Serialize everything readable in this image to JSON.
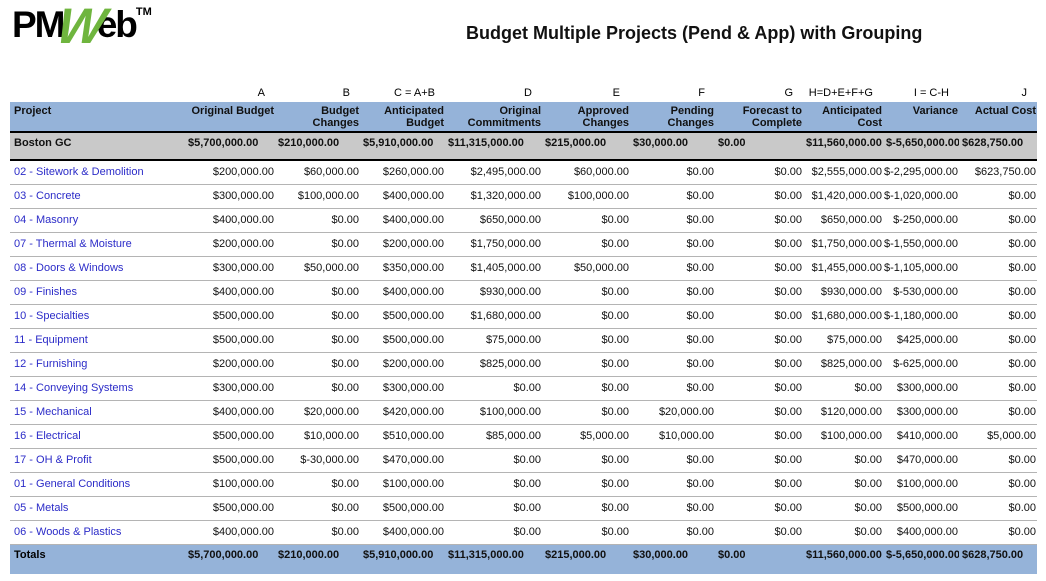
{
  "logo": {
    "pm": "PM",
    "w": "W",
    "eb": "eb",
    "tm": "TM"
  },
  "title": "Budget Multiple Projects (Pend & App) with Grouping",
  "colors": {
    "header_bg": "#95B3D9",
    "totals_bg": "#95B3D9",
    "group_bg": "#C9C9C9",
    "link": "#2B2BC8",
    "logo_green": "#6FB53E"
  },
  "table": {
    "formula_row": [
      "",
      "A",
      "B",
      "C = A+B",
      "D",
      "E",
      "F",
      "G",
      "H=D+E+F+G",
      "I = C-H",
      "J"
    ],
    "headers": [
      "Project",
      "Original Budget",
      "Budget Changes",
      "Anticipated Budget",
      "Original Commitments",
      "Approved Changes",
      "Pending Changes",
      "Forecast to Complete",
      "Anticipated Cost",
      "Variance",
      "Actual Cost"
    ],
    "group_row": {
      "label": "Boston GC",
      "values": [
        "$5,700,000.00",
        "$210,000.00",
        "$5,910,000.00",
        "$11,315,000.00",
        "$215,000.00",
        "$30,000.00",
        "$0.00",
        "$11,560,000.00",
        "$-5,650,000.00",
        "$628,750.00"
      ]
    },
    "rows": [
      {
        "project": "02 - Sitework & Demolition",
        "values": [
          "$200,000.00",
          "$60,000.00",
          "$260,000.00",
          "$2,495,000.00",
          "$60,000.00",
          "$0.00",
          "$0.00",
          "$2,555,000.00",
          "$-2,295,000.00",
          "$623,750.00"
        ]
      },
      {
        "project": "03 - Concrete",
        "values": [
          "$300,000.00",
          "$100,000.00",
          "$400,000.00",
          "$1,320,000.00",
          "$100,000.00",
          "$0.00",
          "$0.00",
          "$1,420,000.00",
          "$-1,020,000.00",
          "$0.00"
        ]
      },
      {
        "project": "04 - Masonry",
        "values": [
          "$400,000.00",
          "$0.00",
          "$400,000.00",
          "$650,000.00",
          "$0.00",
          "$0.00",
          "$0.00",
          "$650,000.00",
          "$-250,000.00",
          "$0.00"
        ]
      },
      {
        "project": "07 - Thermal & Moisture",
        "values": [
          "$200,000.00",
          "$0.00",
          "$200,000.00",
          "$1,750,000.00",
          "$0.00",
          "$0.00",
          "$0.00",
          "$1,750,000.00",
          "$-1,550,000.00",
          "$0.00"
        ]
      },
      {
        "project": "08 - Doors & Windows",
        "values": [
          "$300,000.00",
          "$50,000.00",
          "$350,000.00",
          "$1,405,000.00",
          "$50,000.00",
          "$0.00",
          "$0.00",
          "$1,455,000.00",
          "$-1,105,000.00",
          "$0.00"
        ]
      },
      {
        "project": "09 - Finishes",
        "values": [
          "$400,000.00",
          "$0.00",
          "$400,000.00",
          "$930,000.00",
          "$0.00",
          "$0.00",
          "$0.00",
          "$930,000.00",
          "$-530,000.00",
          "$0.00"
        ]
      },
      {
        "project": "10 - Specialties",
        "values": [
          "$500,000.00",
          "$0.00",
          "$500,000.00",
          "$1,680,000.00",
          "$0.00",
          "$0.00",
          "$0.00",
          "$1,680,000.00",
          "$-1,180,000.00",
          "$0.00"
        ]
      },
      {
        "project": "11 - Equipment",
        "values": [
          "$500,000.00",
          "$0.00",
          "$500,000.00",
          "$75,000.00",
          "$0.00",
          "$0.00",
          "$0.00",
          "$75,000.00",
          "$425,000.00",
          "$0.00"
        ]
      },
      {
        "project": "12 - Furnishing",
        "values": [
          "$200,000.00",
          "$0.00",
          "$200,000.00",
          "$825,000.00",
          "$0.00",
          "$0.00",
          "$0.00",
          "$825,000.00",
          "$-625,000.00",
          "$0.00"
        ]
      },
      {
        "project": "14 - Conveying Systems",
        "values": [
          "$300,000.00",
          "$0.00",
          "$300,000.00",
          "$0.00",
          "$0.00",
          "$0.00",
          "$0.00",
          "$0.00",
          "$300,000.00",
          "$0.00"
        ]
      },
      {
        "project": "15 - Mechanical",
        "values": [
          "$400,000.00",
          "$20,000.00",
          "$420,000.00",
          "$100,000.00",
          "$0.00",
          "$20,000.00",
          "$0.00",
          "$120,000.00",
          "$300,000.00",
          "$0.00"
        ]
      },
      {
        "project": "16 - Electrical",
        "values": [
          "$500,000.00",
          "$10,000.00",
          "$510,000.00",
          "$85,000.00",
          "$5,000.00",
          "$10,000.00",
          "$0.00",
          "$100,000.00",
          "$410,000.00",
          "$5,000.00"
        ]
      },
      {
        "project": "17 - OH & Profit",
        "values": [
          "$500,000.00",
          "$-30,000.00",
          "$470,000.00",
          "$0.00",
          "$0.00",
          "$0.00",
          "$0.00",
          "$0.00",
          "$470,000.00",
          "$0.00"
        ]
      },
      {
        "project": "01 - General Conditions",
        "values": [
          "$100,000.00",
          "$0.00",
          "$100,000.00",
          "$0.00",
          "$0.00",
          "$0.00",
          "$0.00",
          "$0.00",
          "$100,000.00",
          "$0.00"
        ]
      },
      {
        "project": "05 - Metals",
        "values": [
          "$500,000.00",
          "$0.00",
          "$500,000.00",
          "$0.00",
          "$0.00",
          "$0.00",
          "$0.00",
          "$0.00",
          "$500,000.00",
          "$0.00"
        ]
      },
      {
        "project": "06 - Woods & Plastics",
        "values": [
          "$400,000.00",
          "$0.00",
          "$400,000.00",
          "$0.00",
          "$0.00",
          "$0.00",
          "$0.00",
          "$0.00",
          "$400,000.00",
          "$0.00"
        ]
      }
    ],
    "totals_row": {
      "label": "Totals",
      "values": [
        "$5,700,000.00",
        "$210,000.00",
        "$5,910,000.00",
        "$11,315,000.00",
        "$215,000.00",
        "$30,000.00",
        "$0.00",
        "$11,560,000.00",
        "$-5,650,000.00",
        "$628,750.00"
      ]
    }
  }
}
